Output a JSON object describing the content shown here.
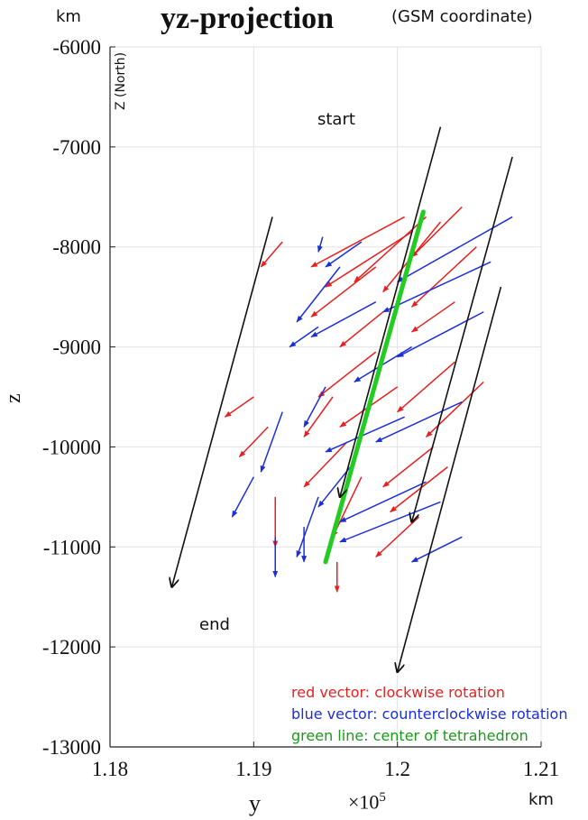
{
  "chart_data": {
    "type": "line",
    "title": "yz-projection",
    "subtitle": "(GSM coordinate)",
    "unit_top": "km",
    "unit_bottom": "km",
    "axis_annotation": "Z (North)",
    "xlabel": "y",
    "ylabel": "z",
    "x_exponent_label": "×10",
    "x_exponent_power": "5",
    "xlim": [
      1.18,
      1.21
    ],
    "ylim": [
      -13000,
      -6000
    ],
    "x_ticks": [
      1.18,
      1.19,
      1.2,
      1.21
    ],
    "x_tick_labels": [
      "1.18",
      "1.19",
      "1.2",
      "1.21"
    ],
    "y_ticks": [
      -6000,
      -7000,
      -8000,
      -9000,
      -10000,
      -11000,
      -12000,
      -13000
    ],
    "y_tick_labels": [
      "-6000",
      "-7000",
      "-8000",
      "-9000",
      "-10000",
      "-11000",
      "-12000",
      "-13000"
    ],
    "grid": true,
    "annotations": {
      "start": "start",
      "end": "end"
    },
    "legend": {
      "red": "red vector: clockwise rotation",
      "blue": "blue vector: counterclockwise rotation",
      "green": "green line: center of tetrahedron"
    },
    "colors": {
      "red": "#e8201f",
      "blue": "#1b2fd8",
      "green": "#22cc22",
      "black": "#111111"
    },
    "trajectories": [
      {
        "x": [
          1.1913,
          1.1843
        ],
        "y": [
          -7700,
          -11400
        ]
      },
      {
        "x": [
          1.203,
          1.196
        ],
        "y": [
          -6800,
          -10500
        ]
      },
      {
        "x": [
          1.208,
          1.201
        ],
        "y": [
          -7100,
          -10750
        ]
      },
      {
        "x": [
          1.2072,
          1.2
        ],
        "y": [
          -8400,
          -12250
        ]
      }
    ],
    "center_line": {
      "x": [
        1.2018,
        1.195
      ],
      "y": [
        -7650,
        -11150
      ]
    },
    "vectors": {
      "red": [
        [
          1.2005,
          -7700,
          1.194,
          -8200
        ],
        [
          1.202,
          -7700,
          1.197,
          -8350
        ],
        [
          1.201,
          -7850,
          1.195,
          -8400
        ],
        [
          1.203,
          -7750,
          1.199,
          -8450
        ],
        [
          1.2045,
          -7600,
          1.201,
          -8100
        ],
        [
          1.1985,
          -8200,
          1.194,
          -8700
        ],
        [
          1.2055,
          -8000,
          1.201,
          -8600
        ],
        [
          1.1985,
          -9050,
          1.1945,
          -9500
        ],
        [
          1.2,
          -9400,
          1.196,
          -9800
        ],
        [
          1.204,
          -9150,
          1.2,
          -9650
        ],
        [
          1.206,
          -9350,
          1.202,
          -9900
        ],
        [
          1.1965,
          -9950,
          1.1935,
          -10400
        ],
        [
          1.1975,
          -10300,
          1.1955,
          -10900
        ],
        [
          1.2035,
          -10200,
          1.1995,
          -10650
        ],
        [
          1.2015,
          -10700,
          1.1985,
          -11100
        ],
        [
          1.1958,
          -11150,
          1.1958,
          -11450
        ],
        [
          1.191,
          -9800,
          1.189,
          -10100
        ],
        [
          1.1955,
          -9500,
          1.1935,
          -9900
        ],
        [
          1.19,
          -9500,
          1.188,
          -9700
        ],
        [
          1.2025,
          -10000,
          1.199,
          -10400
        ],
        [
          1.192,
          -7950,
          1.1905,
          -8200
        ],
        [
          1.1915,
          -10500,
          1.1915,
          -11000
        ],
        [
          1.204,
          -8550,
          1.201,
          -8850
        ],
        [
          1.199,
          -8650,
          1.196,
          -9000
        ]
      ],
      "blue": [
        [
          1.196,
          -8200,
          1.193,
          -8750
        ],
        [
          1.1985,
          -8550,
          1.194,
          -8900
        ],
        [
          1.201,
          -9000,
          1.197,
          -9350
        ],
        [
          1.208,
          -7700,
          1.2,
          -8350
        ],
        [
          1.2065,
          -8150,
          1.199,
          -8650
        ],
        [
          1.195,
          -9400,
          1.1935,
          -9800
        ],
        [
          1.2045,
          -9550,
          1.1985,
          -9950
        ],
        [
          1.2005,
          -9700,
          1.195,
          -10050
        ],
        [
          1.197,
          -10150,
          1.1945,
          -10600
        ],
        [
          1.202,
          -10350,
          1.196,
          -10750
        ],
        [
          1.203,
          -10550,
          1.196,
          -10950
        ],
        [
          1.1945,
          -10500,
          1.193,
          -11100
        ],
        [
          1.192,
          -9650,
          1.1905,
          -10250
        ],
        [
          1.19,
          -10300,
          1.1885,
          -10700
        ],
        [
          1.1948,
          -7900,
          1.1945,
          -8050
        ],
        [
          1.1945,
          -8800,
          1.1925,
          -9000
        ],
        [
          1.2045,
          -10900,
          1.201,
          -11150
        ],
        [
          1.1915,
          -10900,
          1.1915,
          -11300
        ],
        [
          1.206,
          -8650,
          1.2,
          -9100
        ],
        [
          1.1975,
          -7950,
          1.195,
          -8200
        ],
        [
          1.1935,
          -10800,
          1.1935,
          -11150
        ]
      ]
    }
  }
}
